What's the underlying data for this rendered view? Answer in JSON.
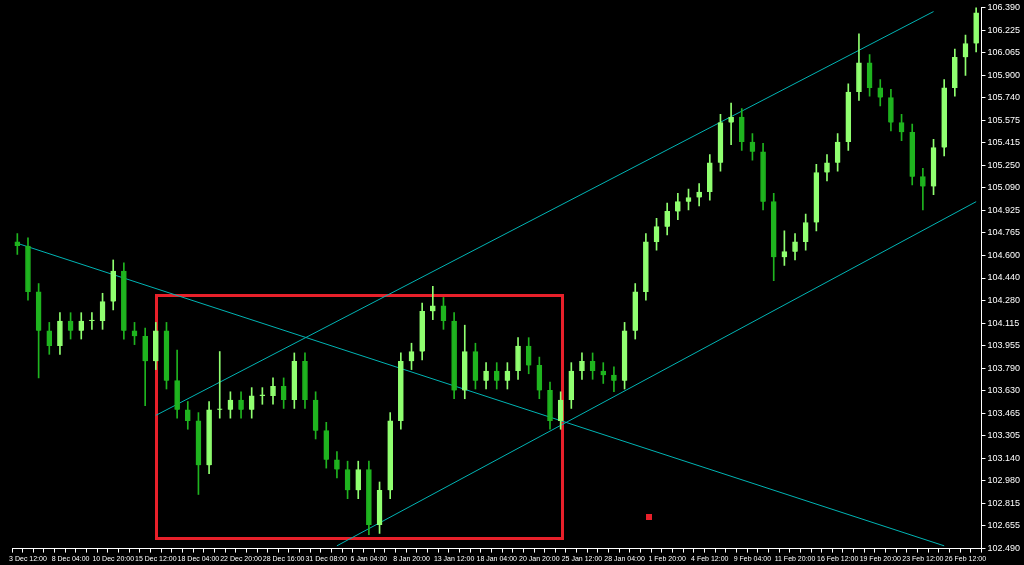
{
  "chart_data": {
    "type": "candlestick",
    "colors": [
      "#1fb41f",
      "#1fb41f",
      "#1fb41f",
      "#1fb41f",
      "#90ff70",
      "#1fb41f",
      "#90ff70",
      "#90ff70",
      "#90ff70",
      "#90ff70",
      "#1fb41f",
      "#1fb41f",
      "#1fb41f",
      "#90ff70",
      "#1fb41f",
      "#1fb41f",
      "#1fb41f",
      "#1fb41f",
      "#90ff70",
      "#90ff70",
      "#90ff70",
      "#1fb41f",
      "#90ff70",
      "#90ff70",
      "#90ff70",
      "#1fb41f",
      "#90ff70",
      "#1fb41f",
      "#1fb41f",
      "#1fb41f",
      "#1fb41f",
      "#1fb41f",
      "#90ff70",
      "#1fb41f",
      "#90ff70",
      "#90ff70",
      "#90ff70",
      "#90ff70",
      "#90ff70",
      "#90ff70",
      "#1fb41f",
      "#1fb41f",
      "#90ff70",
      "#1fb41f",
      "#90ff70",
      "#1fb41f",
      "#90ff70",
      "#90ff70",
      "#1fb41f",
      "#1fb41f",
      "#1fb41f",
      "#90ff70",
      "#90ff70",
      "#90ff70",
      "#1fb41f",
      "#1fb41f",
      "#1fb41f",
      "#90ff70",
      "#90ff70",
      "#90ff70",
      "#90ff70",
      "#90ff70",
      "#90ff70",
      "#90ff70",
      "#90ff70",
      "#90ff70",
      "#90ff70",
      "#90ff70",
      "#1fb41f",
      "#1fb41f",
      "#1fb41f",
      "#1fb41f",
      "#90ff70",
      "#90ff70",
      "#90ff70",
      "#90ff70",
      "#90ff70",
      "#90ff70",
      "#90ff70",
      "#90ff70",
      "#1fb41f",
      "#1fb41f",
      "#1fb41f",
      "#1fb41f",
      "#1fb41f",
      "#1fb41f",
      "#90ff70",
      "#90ff70",
      "#90ff70",
      "#90ff70",
      "#90ff70"
    ],
    "categories": [
      null,
      "3 Dec 12:00",
      null,
      null,
      null,
      "8 Dec 04:00",
      null,
      null,
      null,
      "10 Dec 20:00",
      null,
      null,
      null,
      "15 Dec 12:00",
      null,
      null,
      null,
      "18 Dec 04:00",
      null,
      null,
      null,
      "22 Dec 20:00",
      null,
      null,
      null,
      "28 Dec 16:00",
      null,
      null,
      null,
      "31 Dec 08:00",
      null,
      null,
      null,
      "6 Jan 04:00",
      null,
      null,
      null,
      "8 Jan 20:00",
      null,
      null,
      null,
      "13 Jan 12:00",
      null,
      null,
      null,
      "18 Jan 04:00",
      null,
      null,
      null,
      "20 Jan 20:00",
      null,
      null,
      null,
      "25 Jan 12:00",
      null,
      null,
      null,
      "28 Jan 04:00",
      null,
      null,
      null,
      "1 Feb 20:00",
      null,
      null,
      null,
      "4 Feb 12:00",
      null,
      null,
      null,
      "9 Feb 04:00",
      null,
      null,
      null,
      "11 Feb 20:00",
      null,
      null,
      null,
      "16 Feb 12:00",
      null,
      null,
      null,
      "19 Feb 20:00",
      null,
      null,
      null,
      "23 Feb 12:00",
      null,
      null,
      null,
      "26 Feb 12:00",
      null
    ],
    "ohlc": [
      [
        104.7,
        104.76,
        104.61,
        104.67
      ],
      [
        104.67,
        104.73,
        104.28,
        104.34
      ],
      [
        104.34,
        104.4,
        103.72,
        104.06
      ],
      [
        104.06,
        104.12,
        103.89,
        103.95
      ],
      [
        103.95,
        104.19,
        103.89,
        104.13
      ],
      [
        104.13,
        104.19,
        104.0,
        104.06
      ],
      [
        104.06,
        104.19,
        104.0,
        104.13
      ],
      [
        104.13,
        104.19,
        104.07,
        104.13
      ],
      [
        104.13,
        104.33,
        104.07,
        104.27
      ],
      [
        104.27,
        104.57,
        104.21,
        104.49
      ],
      [
        104.49,
        104.55,
        104.0,
        104.06
      ],
      [
        104.06,
        104.12,
        103.96,
        104.02
      ],
      [
        104.02,
        104.08,
        103.52,
        103.84
      ],
      [
        103.84,
        104.12,
        103.78,
        104.06
      ],
      [
        104.06,
        104.12,
        103.64,
        103.7
      ],
      [
        103.7,
        103.92,
        103.43,
        103.49
      ],
      [
        103.49,
        103.55,
        103.35,
        103.41
      ],
      [
        103.41,
        103.47,
        102.88,
        103.09
      ],
      [
        103.09,
        103.55,
        103.03,
        103.49
      ],
      [
        103.49,
        103.91,
        103.43,
        103.49
      ],
      [
        103.49,
        103.62,
        103.43,
        103.56
      ],
      [
        103.56,
        103.62,
        103.43,
        103.49
      ],
      [
        103.49,
        103.65,
        103.43,
        103.59
      ],
      [
        103.59,
        103.65,
        103.53,
        103.59
      ],
      [
        103.59,
        103.72,
        103.53,
        103.66
      ],
      [
        103.66,
        103.72,
        103.5,
        103.56
      ],
      [
        103.56,
        103.9,
        103.5,
        103.84
      ],
      [
        103.84,
        103.9,
        103.5,
        103.56
      ],
      [
        103.56,
        103.62,
        103.28,
        103.34
      ],
      [
        103.34,
        103.4,
        103.07,
        103.13
      ],
      [
        103.13,
        103.19,
        103.0,
        103.06
      ],
      [
        103.06,
        103.12,
        102.85,
        102.91
      ],
      [
        102.91,
        103.12,
        102.85,
        103.06
      ],
      [
        103.06,
        103.12,
        102.59,
        102.66
      ],
      [
        102.66,
        102.97,
        102.6,
        102.91
      ],
      [
        102.91,
        103.47,
        102.85,
        103.41
      ],
      [
        103.41,
        103.9,
        103.35,
        103.84
      ],
      [
        103.84,
        103.97,
        103.78,
        103.91
      ],
      [
        103.91,
        104.26,
        103.85,
        104.2
      ],
      [
        104.2,
        104.38,
        104.14,
        104.24
      ],
      [
        104.24,
        104.3,
        104.07,
        104.13
      ],
      [
        104.13,
        104.19,
        103.57,
        103.63
      ],
      [
        103.63,
        104.1,
        103.57,
        103.91
      ],
      [
        103.91,
        103.97,
        103.64,
        103.7
      ],
      [
        103.7,
        103.83,
        103.64,
        103.77
      ],
      [
        103.77,
        103.83,
        103.64,
        103.7
      ],
      [
        103.7,
        103.83,
        103.64,
        103.77
      ],
      [
        103.77,
        104.01,
        103.71,
        103.95
      ],
      [
        103.95,
        104.01,
        103.75,
        103.81
      ],
      [
        103.81,
        103.87,
        103.57,
        103.63
      ],
      [
        103.63,
        103.69,
        103.35,
        103.41
      ],
      [
        103.41,
        103.62,
        103.35,
        103.56
      ],
      [
        103.56,
        103.83,
        103.5,
        103.77
      ],
      [
        103.77,
        103.9,
        103.71,
        103.84
      ],
      [
        103.84,
        103.9,
        103.71,
        103.77
      ],
      [
        103.77,
        103.83,
        103.68,
        103.74
      ],
      [
        103.74,
        103.8,
        103.62,
        103.7
      ],
      [
        103.7,
        104.12,
        103.64,
        104.06
      ],
      [
        104.06,
        104.4,
        104.0,
        104.34
      ],
      [
        104.34,
        104.76,
        104.28,
        104.7
      ],
      [
        104.7,
        104.87,
        104.64,
        104.81
      ],
      [
        104.81,
        104.98,
        104.75,
        104.92
      ],
      [
        104.92,
        105.05,
        104.86,
        104.99
      ],
      [
        104.99,
        105.08,
        104.93,
        105.02
      ],
      [
        105.02,
        105.12,
        104.96,
        105.06
      ],
      [
        105.06,
        105.33,
        105.0,
        105.27
      ],
      [
        105.27,
        105.62,
        105.21,
        105.56
      ],
      [
        105.56,
        105.7,
        105.4,
        105.6
      ],
      [
        105.6,
        105.66,
        105.36,
        105.42
      ],
      [
        105.42,
        105.48,
        105.29,
        105.35
      ],
      [
        105.35,
        105.41,
        104.93,
        104.99
      ],
      [
        104.99,
        105.05,
        104.42,
        104.59
      ],
      [
        104.59,
        104.78,
        104.53,
        104.63
      ],
      [
        104.63,
        104.76,
        104.57,
        104.7
      ],
      [
        104.7,
        104.9,
        104.64,
        104.84
      ],
      [
        104.84,
        105.26,
        104.78,
        105.2
      ],
      [
        105.2,
        105.33,
        105.14,
        105.27
      ],
      [
        105.27,
        105.48,
        105.21,
        105.42
      ],
      [
        105.42,
        105.84,
        105.36,
        105.78
      ],
      [
        105.78,
        106.2,
        105.72,
        105.99
      ],
      [
        105.99,
        106.05,
        105.75,
        105.81
      ],
      [
        105.81,
        105.87,
        105.68,
        105.74
      ],
      [
        105.74,
        105.8,
        105.5,
        105.56
      ],
      [
        105.56,
        105.62,
        105.43,
        105.49
      ],
      [
        105.49,
        105.55,
        105.11,
        105.17
      ],
      [
        105.17,
        105.23,
        104.93,
        105.1
      ],
      [
        105.1,
        105.44,
        105.04,
        105.38
      ],
      [
        105.38,
        105.87,
        105.32,
        105.81
      ],
      [
        105.81,
        106.09,
        105.75,
        106.03
      ],
      [
        106.03,
        106.19,
        105.9,
        106.13
      ],
      [
        106.13,
        106.39,
        106.07,
        106.35
      ]
    ],
    "series": [
      {
        "type": "line",
        "color": "#00b4b4",
        "values": [
          104.69,
          null,
          null,
          null,
          null,
          null,
          null,
          null,
          null,
          null,
          null,
          null,
          null,
          null,
          null,
          null,
          null,
          null,
          null,
          null,
          null,
          null,
          null,
          null,
          null,
          null,
          null,
          null,
          null,
          null,
          null,
          null,
          null,
          null,
          null,
          null,
          null,
          null,
          null,
          null,
          null,
          null,
          null,
          null,
          null,
          null,
          null,
          null,
          null,
          null,
          null,
          null,
          null,
          null,
          null,
          null,
          null,
          null,
          null,
          null,
          null,
          null,
          null,
          null,
          null,
          null,
          null,
          null,
          null,
          null,
          null,
          null,
          null,
          null,
          null,
          null,
          null,
          null,
          null,
          null,
          null,
          null,
          null,
          null,
          null,
          null,
          null,
          102.51,
          null,
          null,
          null
        ]
      },
      {
        "type": "line",
        "color": "#00b4b4",
        "values": [
          null,
          null,
          null,
          null,
          null,
          null,
          null,
          null,
          null,
          null,
          null,
          null,
          null,
          103.45,
          null,
          null,
          null,
          null,
          null,
          null,
          null,
          null,
          null,
          null,
          null,
          null,
          null,
          null,
          null,
          null,
          null,
          null,
          null,
          null,
          null,
          null,
          null,
          null,
          null,
          null,
          null,
          null,
          null,
          null,
          null,
          null,
          null,
          null,
          null,
          null,
          null,
          null,
          null,
          null,
          null,
          null,
          null,
          null,
          null,
          null,
          null,
          null,
          null,
          null,
          null,
          null,
          null,
          null,
          null,
          null,
          null,
          null,
          null,
          null,
          null,
          null,
          null,
          null,
          null,
          null,
          null,
          null,
          null,
          null,
          null,
          null,
          106.36,
          null,
          null,
          null,
          null
        ]
      },
      {
        "type": "line",
        "color": "#00b4b4",
        "values": [
          null,
          null,
          null,
          null,
          null,
          null,
          null,
          null,
          null,
          null,
          null,
          null,
          null,
          null,
          null,
          null,
          null,
          null,
          null,
          null,
          null,
          null,
          null,
          null,
          null,
          null,
          null,
          null,
          null,
          null,
          102.51,
          null,
          null,
          null,
          null,
          null,
          null,
          null,
          null,
          null,
          null,
          null,
          null,
          null,
          null,
          null,
          null,
          null,
          null,
          null,
          null,
          null,
          null,
          null,
          null,
          null,
          null,
          null,
          null,
          null,
          null,
          null,
          null,
          null,
          null,
          null,
          null,
          null,
          null,
          null,
          null,
          null,
          null,
          null,
          null,
          null,
          null,
          null,
          null,
          null,
          null,
          null,
          null,
          null,
          null,
          null,
          null,
          null,
          null,
          null,
          104.99
        ]
      }
    ],
    "ylim": [
      102.49,
      106.39
    ],
    "yticks": [
      {
        "value": 106.39,
        "label": "106.390"
      },
      106.225,
      106.065,
      {
        "value": 105.9,
        "label": "105.900"
      },
      {
        "value": 105.74,
        "label": "105.740"
      },
      105.575,
      105.415,
      {
        "value": 105.25,
        "label": "105.250"
      },
      {
        "value": 105.09,
        "label": "105.090"
      },
      104.925,
      104.765,
      {
        "value": 104.6,
        "label": "104.600"
      },
      {
        "value": 104.44,
        "label": "104.440"
      },
      {
        "value": 104.28,
        "label": "104.280"
      },
      104.115,
      103.955,
      {
        "value": 103.79,
        "label": "103.790"
      },
      {
        "value": 103.63,
        "label": "103.630"
      },
      103.465,
      103.305,
      {
        "value": 103.14,
        "label": "103.140"
      },
      {
        "value": 102.98,
        "label": "102.980"
      },
      102.815,
      102.655,
      {
        "value": 102.49,
        "label": "102.490"
      }
    ],
    "grid": false,
    "legend": false
  }
}
